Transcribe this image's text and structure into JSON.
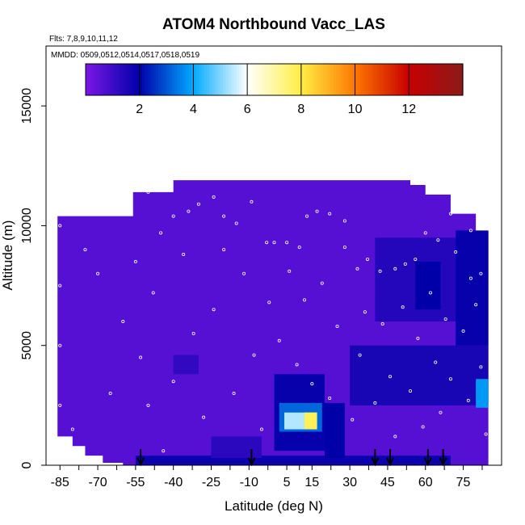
{
  "chart_data": {
    "type": "heatmap",
    "title": "ATOM4 Northbound Vacc_LAS",
    "subtitle_flights": "Flts: 7,8,9,10,11,12",
    "subtitle_dates": "MMDD: 0509,0512,0514,0517,0518,0519",
    "xlabel": "Latitude (deg N)",
    "ylabel": "Altitude (m)",
    "xlim": [
      -87,
      87
    ],
    "ylim": [
      0,
      17500
    ],
    "x_ticks": [
      -85,
      -70,
      -55,
      -40,
      -25,
      -10,
      5,
      15,
      30,
      45,
      60,
      75
    ],
    "y_ticks": [
      0,
      5000,
      10000,
      15000
    ],
    "colorbar": {
      "range": [
        0,
        14
      ],
      "ticks": [
        2,
        4,
        6,
        8,
        10,
        12
      ],
      "palette": [
        "#7a17e6",
        "#0000a8",
        "#00aaff",
        "#ffffff",
        "#ffee44",
        "#ff7700",
        "#c80000",
        "#8b1a1a"
      ]
    },
    "profile_markers_lat": [
      -53,
      -9,
      40,
      46,
      61,
      67
    ],
    "top_of_coverage": [
      {
        "lat": -86,
        "alt": 10400
      },
      {
        "lat": -70,
        "alt": 10400
      },
      {
        "lat": -60,
        "alt": 10400
      },
      {
        "lat": -56,
        "alt": 11400
      },
      {
        "lat": -40,
        "alt": 11900
      },
      {
        "lat": -25,
        "alt": 11900
      },
      {
        "lat": -10,
        "alt": 11900
      },
      {
        "lat": 5,
        "alt": 11900
      },
      {
        "lat": 20,
        "alt": 11900
      },
      {
        "lat": 30,
        "alt": 11900
      },
      {
        "lat": 45,
        "alt": 11900
      },
      {
        "lat": 54,
        "alt": 11700
      },
      {
        "lat": 60,
        "alt": 11300
      },
      {
        "lat": 70,
        "alt": 10500
      },
      {
        "lat": 80,
        "alt": 9800
      },
      {
        "lat": 85,
        "alt": 9500
      }
    ],
    "bottom_of_coverage": [
      {
        "lat": -86,
        "alt": 1800
      },
      {
        "lat": -80,
        "alt": 1200
      },
      {
        "lat": -75,
        "alt": 800
      },
      {
        "lat": -68,
        "alt": 400
      },
      {
        "lat": -60,
        "alt": 100
      },
      {
        "lat": 85,
        "alt": 0
      }
    ],
    "cells": [
      {
        "lat": [
          -86,
          85
        ],
        "alt": [
          0,
          12000
        ],
        "value": 0.6
      },
      {
        "lat": [
          -55,
          70
        ],
        "alt": [
          0,
          400
        ],
        "value": 1.8
      },
      {
        "lat": [
          30,
          85
        ],
        "alt": [
          2500,
          5000
        ],
        "value": 1.6
      },
      {
        "lat": [
          40,
          80
        ],
        "alt": [
          6000,
          9500
        ],
        "value": 1.4
      },
      {
        "lat": [
          72,
          85
        ],
        "alt": [
          5000,
          9800
        ],
        "value": 1.9
      },
      {
        "lat": [
          0,
          20
        ],
        "alt": [
          600,
          3800
        ],
        "value": 1.9
      },
      {
        "lat": [
          2,
          19
        ],
        "alt": [
          1400,
          2600
        ],
        "value": 3.2
      },
      {
        "lat": [
          4,
          17
        ],
        "alt": [
          1500,
          2200
        ],
        "value": 5.4
      },
      {
        "lat": [
          12,
          17
        ],
        "alt": [
          1500,
          2200
        ],
        "value": 7.8
      },
      {
        "lat": [
          20,
          28
        ],
        "alt": [
          300,
          2600
        ],
        "value": 2.0
      },
      {
        "lat": [
          -25,
          -5
        ],
        "alt": [
          300,
          1200
        ],
        "value": 1.3
      },
      {
        "lat": [
          -40,
          -30
        ],
        "alt": [
          3800,
          4600
        ],
        "value": 1.2
      },
      {
        "lat": [
          80,
          85
        ],
        "alt": [
          2400,
          3600
        ],
        "value": 3.8
      },
      {
        "lat": [
          56,
          66
        ],
        "alt": [
          6500,
          8500
        ],
        "value": 2.0
      }
    ],
    "flight_track_points": [
      {
        "lat": -85,
        "alt": 10000
      },
      {
        "lat": -80,
        "alt": 10500
      },
      {
        "lat": -77,
        "alt": 10600
      },
      {
        "lat": -72,
        "alt": 10900
      },
      {
        "lat": -68,
        "alt": 11000
      },
      {
        "lat": -62,
        "alt": 11100
      },
      {
        "lat": -57,
        "alt": 11300
      },
      {
        "lat": -50,
        "alt": 11400
      },
      {
        "lat": -45,
        "alt": 9700
      },
      {
        "lat": -40,
        "alt": 10400
      },
      {
        "lat": -34,
        "alt": 10600
      },
      {
        "lat": -30,
        "alt": 10900
      },
      {
        "lat": -24,
        "alt": 11200
      },
      {
        "lat": -20,
        "alt": 10400
      },
      {
        "lat": -15,
        "alt": 10100
      },
      {
        "lat": -9,
        "alt": 11000
      },
      {
        "lat": -3,
        "alt": 9300
      },
      {
        "lat": 0,
        "alt": 9300
      },
      {
        "lat": 5,
        "alt": 9300
      },
      {
        "lat": 10,
        "alt": 9100
      },
      {
        "lat": 13,
        "alt": 10400
      },
      {
        "lat": 17,
        "alt": 10600
      },
      {
        "lat": 22,
        "alt": 10500
      },
      {
        "lat": 28,
        "alt": 10200
      },
      {
        "lat": 33,
        "alt": 8200
      },
      {
        "lat": 37,
        "alt": 8600
      },
      {
        "lat": 42,
        "alt": 8100
      },
      {
        "lat": 48,
        "alt": 8200
      },
      {
        "lat": 52,
        "alt": 8400
      },
      {
        "lat": 56,
        "alt": 8600
      },
      {
        "lat": 60,
        "alt": 9700
      },
      {
        "lat": 65,
        "alt": 9400
      },
      {
        "lat": 70,
        "alt": 10500
      },
      {
        "lat": 74,
        "alt": 10800
      },
      {
        "lat": 78,
        "alt": 9800
      },
      {
        "lat": 82,
        "alt": 8000
      },
      {
        "lat": -85,
        "alt": 7500
      },
      {
        "lat": -85,
        "alt": 5000
      },
      {
        "lat": -85,
        "alt": 2500
      },
      {
        "lat": -80,
        "alt": 1500
      },
      {
        "lat": -75,
        "alt": 9000
      },
      {
        "lat": -70,
        "alt": 8000
      },
      {
        "lat": -65,
        "alt": 3000
      },
      {
        "lat": -60,
        "alt": 6000
      },
      {
        "lat": -55,
        "alt": 8500
      },
      {
        "lat": -53,
        "alt": 4500
      },
      {
        "lat": -50,
        "alt": 2500
      },
      {
        "lat": -48,
        "alt": 7200
      },
      {
        "lat": -44,
        "alt": 600
      },
      {
        "lat": -40,
        "alt": 3500
      },
      {
        "lat": -36,
        "alt": 8800
      },
      {
        "lat": -32,
        "alt": 5500
      },
      {
        "lat": -28,
        "alt": 2000
      },
      {
        "lat": -24,
        "alt": 6500
      },
      {
        "lat": -20,
        "alt": 9000
      },
      {
        "lat": -16,
        "alt": 3000
      },
      {
        "lat": -12,
        "alt": 8000
      },
      {
        "lat": -8,
        "alt": 4600
      },
      {
        "lat": -5,
        "alt": 1500
      },
      {
        "lat": -2,
        "alt": 6800
      },
      {
        "lat": 2,
        "alt": 5200
      },
      {
        "lat": 6,
        "alt": 8100
      },
      {
        "lat": 9,
        "alt": 4200
      },
      {
        "lat": 12,
        "alt": 6900
      },
      {
        "lat": 15,
        "alt": 3400
      },
      {
        "lat": 19,
        "alt": 7600
      },
      {
        "lat": 22,
        "alt": 2800
      },
      {
        "lat": 25,
        "alt": 5800
      },
      {
        "lat": 28,
        "alt": 9100
      },
      {
        "lat": 31,
        "alt": 1900
      },
      {
        "lat": 34,
        "alt": 4600
      },
      {
        "lat": 36,
        "alt": 6400
      },
      {
        "lat": 40,
        "alt": 2600
      },
      {
        "lat": 43,
        "alt": 5900
      },
      {
        "lat": 46,
        "alt": 3700
      },
      {
        "lat": 48,
        "alt": 1200
      },
      {
        "lat": 51,
        "alt": 6600
      },
      {
        "lat": 54,
        "alt": 3100
      },
      {
        "lat": 57,
        "alt": 5300
      },
      {
        "lat": 59,
        "alt": 1600
      },
      {
        "lat": 62,
        "alt": 7200
      },
      {
        "lat": 64,
        "alt": 4300
      },
      {
        "lat": 66,
        "alt": 2200
      },
      {
        "lat": 68,
        "alt": 6100
      },
      {
        "lat": 70,
        "alt": 3600
      },
      {
        "lat": 72,
        "alt": 8900
      },
      {
        "lat": 75,
        "alt": 5600
      },
      {
        "lat": 77,
        "alt": 2700
      },
      {
        "lat": 80,
        "alt": 6700
      },
      {
        "lat": 82,
        "alt": 4100
      },
      {
        "lat": 84,
        "alt": 1300
      },
      {
        "lat": 78,
        "alt": 7800
      }
    ]
  }
}
